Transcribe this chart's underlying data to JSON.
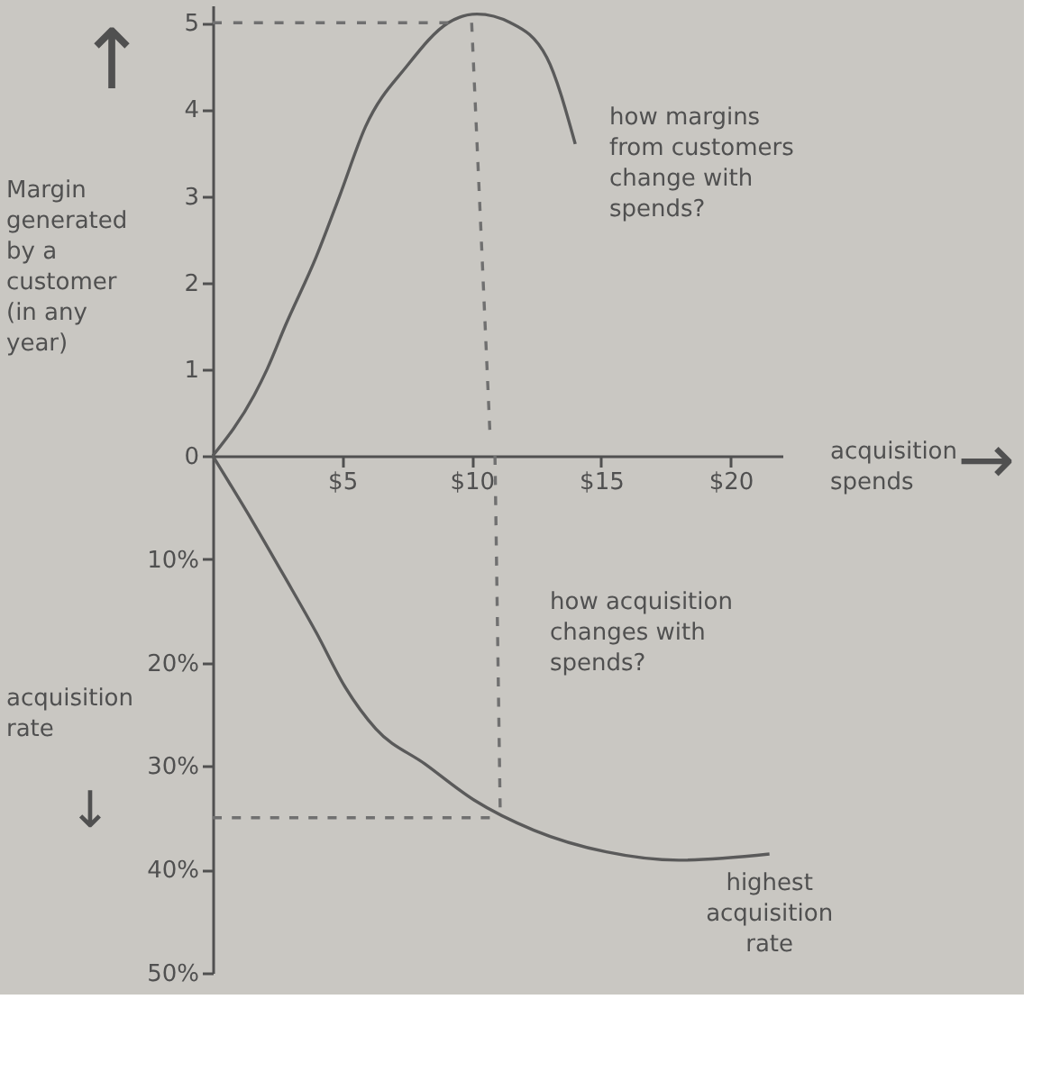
{
  "chart_data": [
    {
      "type": "line",
      "ylabel": "Margin generated by a customer (in any year)",
      "xlabel": "acquisition spends",
      "annotations": [
        "↑",
        "→",
        "how margins from customers change with spends?"
      ],
      "xlim": [
        0,
        22
      ],
      "xticks": [
        {
          "value": 5,
          "label": "$5"
        },
        {
          "value": 10,
          "label": "$10"
        },
        {
          "value": 15,
          "label": "$15"
        },
        {
          "value": 20,
          "label": "$20"
        }
      ],
      "ylim": [
        0,
        5.2
      ],
      "yticks": [
        0,
        1,
        2,
        3,
        4,
        5
      ],
      "series": [
        {
          "color": "#5a5a5a",
          "x": [
            0,
            1.6,
            2.1,
            2.8,
            4,
            4.9,
            5.9,
            7.5,
            9.1,
            10.2,
            11.5,
            12.9,
            14
          ],
          "values": [
            0,
            0.7,
            1,
            1.5,
            2.3,
            3,
            3.8,
            4.5,
            5,
            5.1,
            5,
            4.6,
            3.6
          ]
        },
        {
          "color": "#707070",
          "line_style": "dashed",
          "x": [
            0,
            9.1
          ],
          "values": [
            5,
            5
          ]
        },
        {
          "color": "#707070",
          "line_style": "dashed",
          "x": [
            10,
            10.7
          ],
          "values": [
            5,
            0.3
          ]
        }
      ]
    },
    {
      "type": "line",
      "ylabel": "acquisition rate",
      "annotations": [
        "↓",
        "how acquisition changes with spends?",
        {
          "text": "highest acquisition rate",
          "x": 21.5,
          "y": 38.5
        }
      ],
      "xlim": [
        0,
        22
      ],
      "tick_labels": "y",
      "ylim": [
        50,
        0
      ],
      "yticks": [
        {
          "value": 10,
          "label": "10%"
        },
        {
          "value": 20,
          "label": "20%"
        },
        {
          "value": 30,
          "label": "30%"
        },
        {
          "value": 40,
          "label": "40%"
        },
        {
          "value": 50,
          "label": "50%"
        }
      ],
      "series": [
        {
          "color": "#5a5a5a",
          "x": [
            0,
            1.6,
            2.8,
            4,
            5.1,
            6.3,
            8.2,
            10.1,
            12.4,
            15.2,
            18,
            21.5
          ],
          "values": [
            0,
            6.6,
            11.8,
            17.1,
            22.3,
            26.4,
            29.8,
            33.3,
            36.2,
            38.3,
            39.1,
            38.5
          ]
        },
        {
          "color": "#707070",
          "line_style": "dashed",
          "x": [
            10.9,
            11.1
          ],
          "values": [
            0,
            34
          ]
        },
        {
          "color": "#707070",
          "line_style": "dashed",
          "x": [
            0,
            10.7
          ],
          "values": [
            35,
            35
          ]
        }
      ]
    }
  ]
}
